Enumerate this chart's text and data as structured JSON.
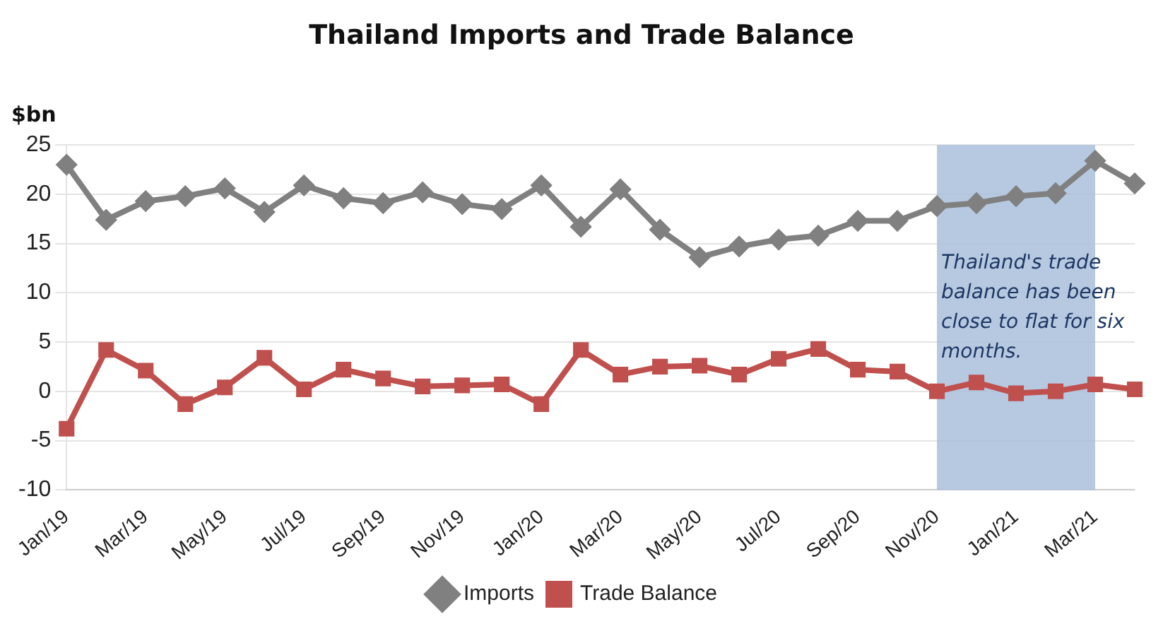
{
  "chart_data": {
    "type": "line",
    "title": "Thailand Imports and Trade Balance",
    "ylabel": "$bn",
    "categories": [
      "Jan/19",
      null,
      "Mar/19",
      null,
      "May/19",
      null,
      "Jul/19",
      null,
      "Sep/19",
      null,
      "Nov/19",
      null,
      "Jan/20",
      null,
      "Mar/20",
      null,
      "May/20",
      null,
      "Jul/20",
      null,
      "Sep/20",
      null,
      "Nov/20",
      null,
      "Jan/21",
      null,
      "Mar/21",
      null
    ],
    "series": [
      {
        "name": "Imports",
        "color": "#808080",
        "marker": "diamond",
        "values": [
          23.0,
          17.4,
          19.3,
          19.8,
          20.6,
          18.2,
          20.9,
          19.6,
          19.1,
          20.2,
          19.0,
          18.5,
          20.9,
          16.7,
          20.5,
          16.4,
          13.6,
          14.7,
          15.4,
          15.8,
          17.3,
          17.3,
          18.8,
          19.1,
          19.8,
          20.1,
          23.4,
          21.1
        ]
      },
      {
        "name": "Trade Balance",
        "color": "#c0504d",
        "marker": "square",
        "values": [
          -3.8,
          4.2,
          2.1,
          -1.3,
          0.4,
          3.4,
          0.2,
          2.2,
          1.3,
          0.5,
          0.6,
          0.7,
          -1.3,
          4.2,
          1.7,
          2.5,
          2.6,
          1.7,
          3.3,
          4.3,
          2.2,
          2.0,
          0.0,
          0.9,
          -0.2,
          0.0,
          0.7,
          0.2
        ]
      }
    ],
    "ylim": [
      -10,
      25
    ],
    "yticks": [
      -10,
      -5,
      0,
      5,
      10,
      15,
      20,
      25
    ],
    "grid": "y",
    "legend": "bottom",
    "bands": [
      {
        "axis": "x",
        "from": "Nov/20",
        "to": "Mar/21",
        "label": "Thailand's trade balance has been close to flat for six months.",
        "color": "#a9bfdc"
      }
    ]
  }
}
